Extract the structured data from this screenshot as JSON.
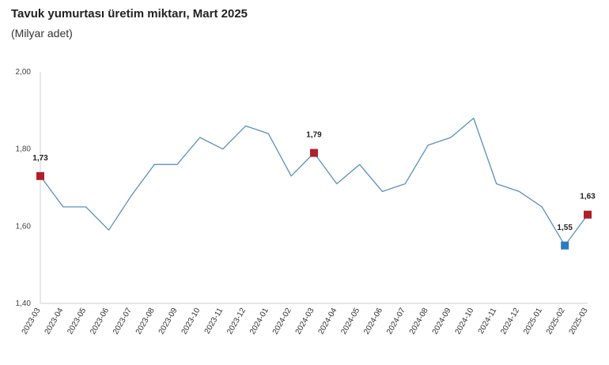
{
  "title": "Tavuk yumurtası üretim miktarı, Mart 2025",
  "subtitle": "(Milyar adet)",
  "chart_data": {
    "type": "line",
    "title": "Tavuk yumurtası üretim miktarı, Mart 2025",
    "subtitle": "(Milyar adet)",
    "xlabel": "",
    "ylabel": "",
    "ylim": [
      1.4,
      2.0
    ],
    "yticks": [
      "1,40",
      "1,60",
      "1,80",
      "2,00"
    ],
    "ytick_values": [
      1.4,
      1.6,
      1.8,
      2.0
    ],
    "grid": false,
    "categories": [
      "2023-03",
      "2023-04",
      "2023-05",
      "2023-06",
      "2023-07",
      "2023-08",
      "2023-09",
      "2023-10",
      "2023-11",
      "2023-12",
      "2024-01",
      "2024-02",
      "2024-03",
      "2024-04",
      "2024-05",
      "2024-06",
      "2024-07",
      "2024-08",
      "2024-09",
      "2024-10",
      "2024-11",
      "2024-12",
      "2025-01",
      "2025-02",
      "2025-03"
    ],
    "series": [
      {
        "values": [
          1.73,
          1.65,
          1.65,
          1.59,
          1.68,
          1.76,
          1.76,
          1.83,
          1.8,
          1.86,
          1.84,
          1.73,
          1.79,
          1.71,
          1.76,
          1.69,
          1.71,
          1.81,
          1.83,
          1.88,
          1.71,
          1.69,
          1.65,
          1.55,
          1.63
        ],
        "color": "#5b8fbe"
      }
    ],
    "markers": [
      {
        "index": 0,
        "label": "1,73",
        "color": "#b0202a",
        "position": "above"
      },
      {
        "index": 12,
        "label": "1,79",
        "color": "#b0202a",
        "position": "above"
      },
      {
        "index": 23,
        "label": "1,55",
        "color": "#2e7bbf",
        "position": "above"
      },
      {
        "index": 24,
        "label": "1,63",
        "color": "#b0202a",
        "position": "above"
      }
    ]
  }
}
